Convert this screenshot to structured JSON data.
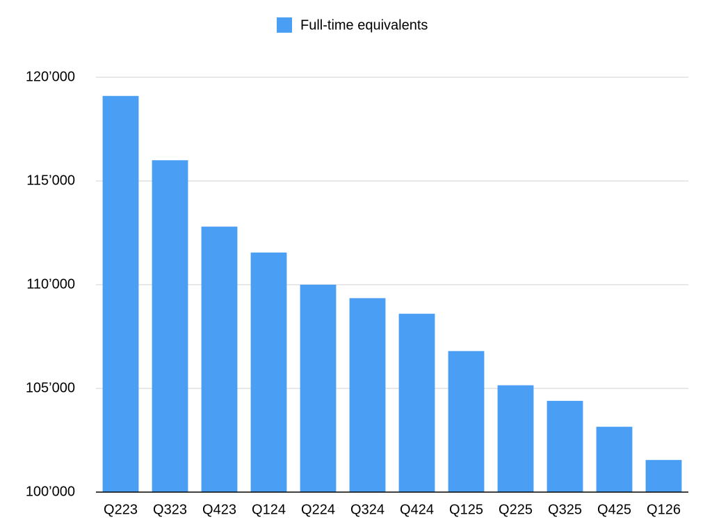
{
  "chart_data": {
    "type": "bar",
    "categories": [
      "Q223",
      "Q323",
      "Q423",
      "Q124",
      "Q224",
      "Q324",
      "Q424",
      "Q125",
      "Q225",
      "Q325",
      "Q425",
      "Q126"
    ],
    "series": [
      {
        "name": "Full-time equivalents",
        "color": "#4a9ff5",
        "values": [
          119100,
          116000,
          112800,
          111550,
          110000,
          109350,
          108600,
          106800,
          105150,
          104400,
          103150,
          101550
        ]
      }
    ],
    "ylim": [
      100000,
      120000
    ],
    "yticks": [
      {
        "value": 100000,
        "label": "100’000"
      },
      {
        "value": 105000,
        "label": "105’000"
      },
      {
        "value": 110000,
        "label": "110’000"
      },
      {
        "value": 115000,
        "label": "115’000"
      },
      {
        "value": 120000,
        "label": "120’000"
      }
    ],
    "grid": true,
    "legend": "top"
  }
}
